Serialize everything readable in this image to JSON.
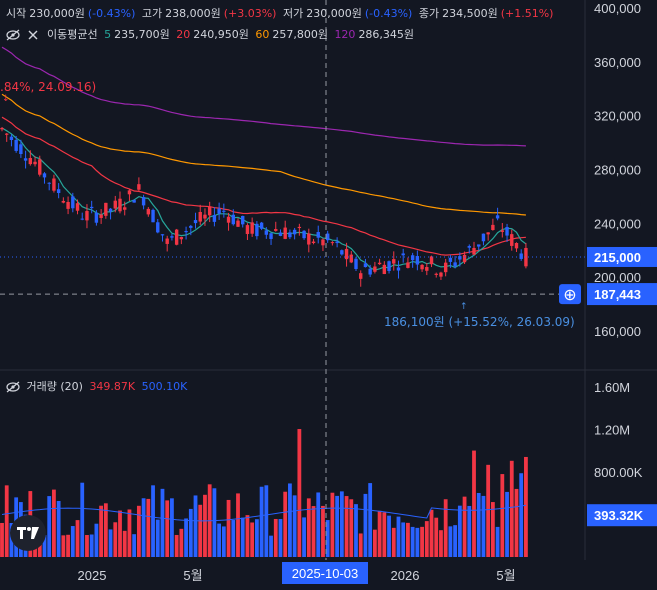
{
  "ohlc": {
    "open_label": "시작",
    "open_value": "230,000원",
    "open_change": "(-0.43%)",
    "high_label": "고가",
    "high_value": "238,000원",
    "high_change": "(+3.03%)",
    "low_label": "저가",
    "low_value": "230,000원",
    "low_change": "(-0.43%)",
    "close_label": "종가",
    "close_value": "234,500원",
    "close_change": "(+1.51%)"
  },
  "ma_legend": {
    "title": "이동평균선",
    "p1": "5",
    "v1": "235,700원",
    "p2": "20",
    "v2": "240,950원",
    "p3": "60",
    "v3": "257,800원",
    "p4": "120",
    "v4": "286,345원"
  },
  "volume_legend": {
    "title": "거래량 (20)",
    "v1": "349.87K",
    "v2": "500.10K"
  },
  "annotations": {
    "high_marker": ".84%, 24.09.16)",
    "low_marker": "186,100원 (+15.52%, 26.03.09)"
  },
  "price_axis": {
    "ticks": [
      "400,000",
      "360,000",
      "320,000",
      "280,000",
      "240,000",
      "200,000",
      "160,000"
    ],
    "current_price": "215,000",
    "crosshair_price": "187,443"
  },
  "volume_axis": {
    "ticks": [
      "1.60M",
      "1.20M",
      "800.00K"
    ],
    "current_volume": "393.32K"
  },
  "time_axis": {
    "labels": [
      "2025",
      "5월",
      "2026",
      "5월"
    ],
    "crosshair_date": "2025-10-03"
  },
  "colors": {
    "up": "#f23645",
    "down": "#2962ff",
    "ma5": "#26a69a",
    "ma20": "#f23645",
    "ma60": "#ff9800",
    "ma120": "#9c27b0",
    "background": "#131722"
  },
  "chart_data": {
    "type": "candlestick",
    "x": [
      "2024-10",
      "2024-11",
      "2024-12",
      "2025-01",
      "2025-02",
      "2025-03",
      "2025-04",
      "2025-05",
      "2025-06",
      "2025-07",
      "2025-08",
      "2025-09",
      "2025-10",
      "2025-11",
      "2025-12",
      "2026-01",
      "2026-02",
      "2026-03",
      "2026-04",
      "2026-05"
    ],
    "close": [
      310000,
      290000,
      265000,
      245000,
      250000,
      265000,
      225000,
      240000,
      250000,
      235000,
      235000,
      230000,
      225000,
      205000,
      210000,
      215000,
      205000,
      220000,
      240000,
      215000
    ],
    "ma120_end": 286345,
    "ma60_end": 257800,
    "ma20_end": 240950,
    "ma5_end": 235700,
    "ylim": [
      140000,
      400000
    ]
  }
}
